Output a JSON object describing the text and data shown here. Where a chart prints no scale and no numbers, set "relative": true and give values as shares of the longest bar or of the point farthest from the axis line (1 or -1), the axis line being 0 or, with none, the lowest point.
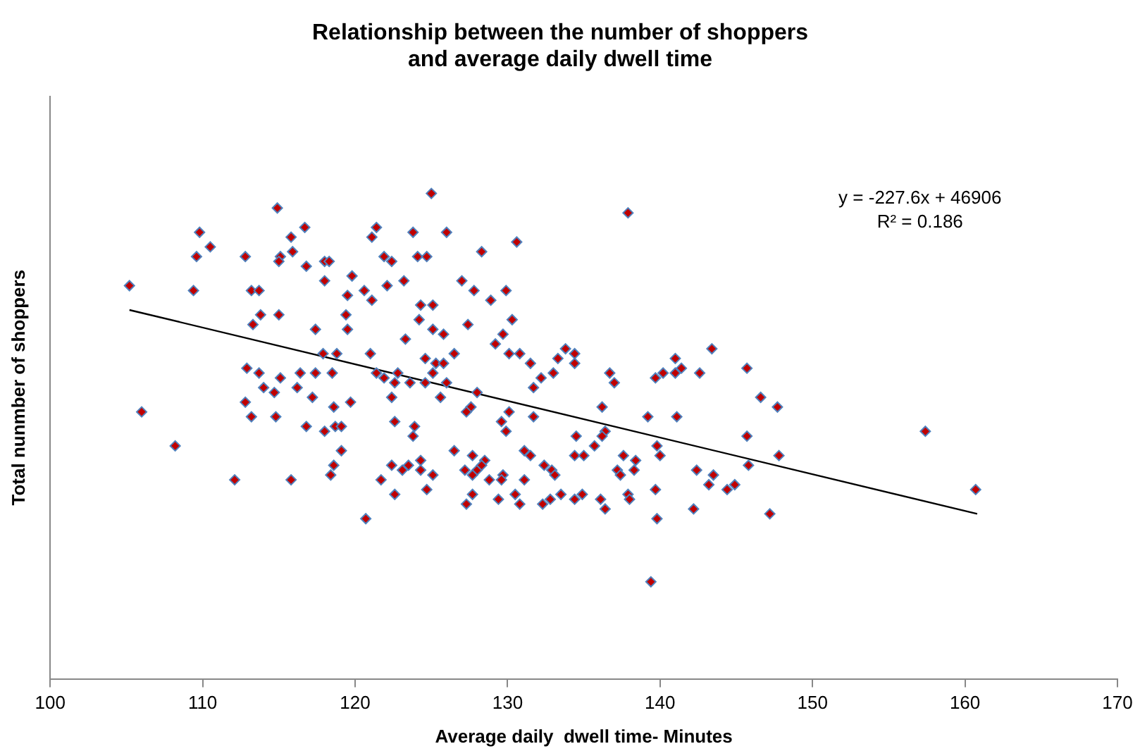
{
  "chart_data": {
    "type": "scatter",
    "title": "Relationship between the number of shoppers\nand average daily dwell time",
    "xlabel": "Average daily  dwell time- Minutes",
    "ylabel": "Total nunmber of shoppers",
    "relative": true,
    "xlim": [
      100,
      170
    ],
    "xticks": [
      100,
      110,
      120,
      130,
      140,
      150,
      160,
      170
    ],
    "grid": false,
    "legend": false,
    "marker": "diamond",
    "annotations": [
      "y = -227.6x + 46906",
      "R² = 0.186"
    ],
    "series": [
      {
        "color": "#c00000",
        "x": [
          114.9,
          109.8,
          115.8,
          116.7,
          110.5,
          109.6,
          112.8,
          115.1,
          115.0,
          115.9,
          116.8,
          118.0,
          118.3,
          119.8,
          105.2,
          109.4,
          113.2,
          113.7,
          118.0,
          120.6,
          119.5,
          113.8,
          113.3,
          115.0,
          119.4,
          117.4,
          119.5,
          117.9,
          118.8,
          112.9,
          113.7,
          115.1,
          116.4,
          117.4,
          118.5,
          114.0,
          114.7,
          116.2,
          117.2,
          119.7,
          112.8,
          113.2,
          114.8,
          118.6,
          106.0,
          116.8,
          118.0,
          118.7,
          119.1,
          108.2,
          119.1,
          118.6,
          118.4,
          112.1,
          115.8,
          120.7,
          125.0,
          121.4,
          121.1,
          123.8,
          126.0,
          128.3,
          130.6,
          121.9,
          122.4,
          124.1,
          124.7,
          122.1,
          123.2,
          127.0,
          127.8,
          129.9,
          121.1,
          124.3,
          125.1,
          128.9,
          124.2,
          125.1,
          125.8,
          127.4,
          130.3,
          129.7,
          129.2,
          123.3,
          121.0,
          124.6,
          125.3,
          125.8,
          126.5,
          130.1,
          130.8,
          131.5,
          133.3,
          133.8,
          134.4,
          134.4,
          133.0,
          132.2,
          131.7,
          136.7,
          121.4,
          121.9,
          122.8,
          122.6,
          123.6,
          124.6,
          125.1,
          126.0,
          122.4,
          125.6,
          128.0,
          127.6,
          127.3,
          130.1,
          129.6,
          129.9,
          131.7,
          136.2,
          122.6,
          123.9,
          123.8,
          134.5,
          136.4,
          126.5,
          131.1,
          131.5,
          134.4,
          135.0,
          135.7,
          124.3,
          127.7,
          128.5,
          122.4,
          123.1,
          123.5,
          124.3,
          125.1,
          127.2,
          128.0,
          128.3,
          127.7,
          128.8,
          129.7,
          129.6,
          131.1,
          132.4,
          132.9,
          133.1,
          121.7,
          122.6,
          124.7,
          127.7,
          127.3,
          129.4,
          130.5,
          130.8,
          132.3,
          132.8,
          133.5,
          134.4,
          134.9,
          136.1,
          136.4,
          137.9,
          143.4,
          141.0,
          140.2,
          141.4,
          141.0,
          142.6,
          145.7,
          137.0,
          139.7,
          146.6,
          147.7,
          139.2,
          141.1,
          136.2,
          145.7,
          139.8,
          140.0,
          137.6,
          138.4,
          147.8,
          137.2,
          138.3,
          137.4,
          142.4,
          143.5,
          145.8,
          139.7,
          143.2,
          144.4,
          144.9,
          137.9,
          138.0,
          142.2,
          147.2,
          139.8,
          139.4,
          157.4,
          160.7
        ],
        "values": [
          0.97,
          0.92,
          0.91,
          0.93,
          0.89,
          0.87,
          0.87,
          0.87,
          0.86,
          0.88,
          0.85,
          0.86,
          0.86,
          0.83,
          0.81,
          0.8,
          0.8,
          0.8,
          0.82,
          0.8,
          0.79,
          0.75,
          0.73,
          0.75,
          0.75,
          0.72,
          0.72,
          0.67,
          0.67,
          0.64,
          0.63,
          0.62,
          0.63,
          0.63,
          0.63,
          0.6,
          0.59,
          0.6,
          0.58,
          0.57,
          0.57,
          0.54,
          0.54,
          0.56,
          0.55,
          0.52,
          0.51,
          0.52,
          0.52,
          0.48,
          0.47,
          0.44,
          0.42,
          0.41,
          0.41,
          0.33,
          1.0,
          0.93,
          0.91,
          0.92,
          0.92,
          0.88,
          0.9,
          0.87,
          0.86,
          0.87,
          0.87,
          0.81,
          0.82,
          0.82,
          0.8,
          0.8,
          0.78,
          0.77,
          0.77,
          0.78,
          0.74,
          0.72,
          0.71,
          0.73,
          0.74,
          0.71,
          0.69,
          0.7,
          0.67,
          0.66,
          0.65,
          0.65,
          0.67,
          0.67,
          0.67,
          0.65,
          0.66,
          0.68,
          0.67,
          0.65,
          0.63,
          0.62,
          0.6,
          0.63,
          0.63,
          0.62,
          0.63,
          0.61,
          0.61,
          0.61,
          0.63,
          0.61,
          0.58,
          0.58,
          0.59,
          0.56,
          0.55,
          0.55,
          0.53,
          0.51,
          0.54,
          0.56,
          0.53,
          0.52,
          0.5,
          0.5,
          0.51,
          0.47,
          0.47,
          0.46,
          0.46,
          0.46,
          0.48,
          0.45,
          0.46,
          0.45,
          0.44,
          0.43,
          0.44,
          0.43,
          0.42,
          0.43,
          0.43,
          0.44,
          0.42,
          0.41,
          0.42,
          0.41,
          0.41,
          0.44,
          0.43,
          0.42,
          0.41,
          0.38,
          0.39,
          0.38,
          0.36,
          0.37,
          0.38,
          0.36,
          0.36,
          0.37,
          0.38,
          0.37,
          0.38,
          0.37,
          0.35,
          0.96,
          0.68,
          0.66,
          0.63,
          0.64,
          0.63,
          0.63,
          0.64,
          0.61,
          0.62,
          0.58,
          0.56,
          0.54,
          0.54,
          0.5,
          0.5,
          0.48,
          0.46,
          0.46,
          0.45,
          0.46,
          0.43,
          0.43,
          0.42,
          0.43,
          0.42,
          0.44,
          0.39,
          0.4,
          0.39,
          0.4,
          0.38,
          0.37,
          0.35,
          0.34,
          0.33,
          0.2,
          0.51,
          0.39
        ]
      },
      {
        "type": "line",
        "color": "#000000",
        "x": [
          105.2,
          160.8
        ],
        "values": [
          0.76,
          0.34
        ],
        "marker": "none",
        "line_style": "solid"
      }
    ]
  }
}
